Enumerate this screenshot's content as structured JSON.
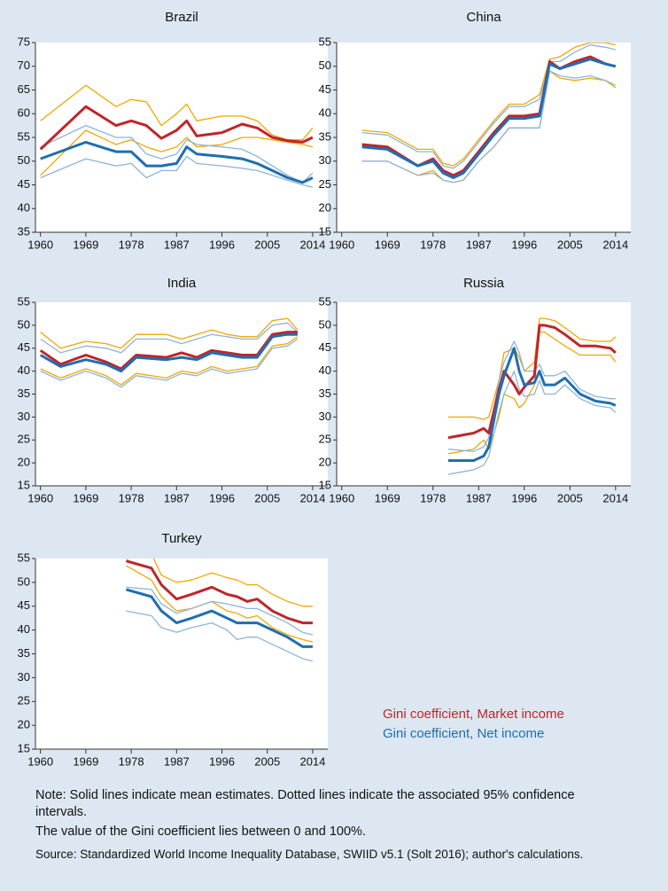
{
  "chart_data": [
    {
      "type": "line",
      "title": "Brazil",
      "x": [
        1960,
        1969,
        1975,
        1978,
        1981,
        1984,
        1987,
        1989,
        1991,
        1996,
        2000,
        2003,
        2006,
        2009,
        2012,
        2014
      ],
      "xlim": [
        1959,
        2017
      ],
      "xticks": [
        1960,
        1969,
        1978,
        1987,
        1996,
        2005,
        2014
      ],
      "ylim": [
        35,
        75
      ],
      "yticks": [
        35,
        40,
        45,
        50,
        55,
        60,
        65,
        70,
        75
      ],
      "series": [
        {
          "color": "#f0a800",
          "values": [
            58.5,
            66,
            61.5,
            63,
            62.5,
            57.5,
            60,
            62,
            58.5,
            59.5,
            59.5,
            58.5,
            55.5,
            54.5,
            54.5,
            57
          ]
        },
        {
          "color": "#f0a800",
          "values": [
            47,
            56.5,
            53.5,
            54.5,
            53,
            52,
            53,
            55,
            53,
            53.5,
            55,
            55,
            54.5,
            54,
            53.5,
            53
          ]
        },
        {
          "color": "#8db4dc",
          "values": [
            53,
            57.5,
            55,
            55,
            51.5,
            50.5,
            51.5,
            54.5,
            53.5,
            53,
            52.5,
            51,
            49,
            47,
            45.5,
            47.5
          ]
        },
        {
          "color": "#8db4dc",
          "values": [
            46.5,
            50.5,
            49,
            49.5,
            46.5,
            48,
            48,
            51,
            49.5,
            49,
            48.5,
            48,
            47,
            46,
            45,
            44.5
          ]
        },
        {
          "color": "#c0252a",
          "values": [
            52.5,
            61.5,
            57.5,
            58.5,
            57.5,
            54.8,
            56.5,
            58.5,
            55.3,
            56,
            57.8,
            57,
            55,
            54.3,
            54,
            55
          ]
        },
        {
          "color": "#1f6eb0",
          "values": [
            50.5,
            54,
            52,
            52,
            49,
            49,
            49.5,
            53,
            51.5,
            51,
            50.5,
            49.5,
            48,
            46.5,
            45.5,
            46.5
          ]
        }
      ]
    },
    {
      "type": "line",
      "title": "China",
      "x": [
        1964,
        1969,
        1975,
        1978,
        1980,
        1982,
        1984,
        1987,
        1990,
        1993,
        1996,
        1999,
        2001,
        2003,
        2006,
        2009,
        2012,
        2014
      ],
      "xlim": [
        1959,
        2017
      ],
      "xticks": [
        1960,
        1969,
        1978,
        1987,
        1996,
        2005,
        2014
      ],
      "ylim": [
        15,
        55
      ],
      "yticks": [
        15,
        20,
        25,
        30,
        35,
        40,
        45,
        50,
        55
      ],
      "series": [
        {
          "color": "#f0a800",
          "values": [
            36.5,
            36,
            32.5,
            32.5,
            29.5,
            29,
            30.5,
            34.5,
            38.5,
            42,
            42,
            44,
            51.5,
            52,
            54,
            55,
            55,
            54.5
          ]
        },
        {
          "color": "#f0a800",
          "values": [
            30,
            30,
            27,
            28,
            26,
            25.5,
            26,
            30,
            33,
            37,
            37,
            37,
            49,
            47.5,
            47,
            47.5,
            47,
            45.5
          ]
        },
        {
          "color": "#8db4dc",
          "values": [
            36,
            35.5,
            32,
            32,
            29,
            28.5,
            30,
            34,
            38,
            41.5,
            41.5,
            43,
            51,
            51,
            53,
            54.5,
            54,
            53.5
          ]
        },
        {
          "color": "#8db4dc",
          "values": [
            30,
            30,
            27,
            27.5,
            26,
            25.5,
            26,
            30,
            33,
            37,
            37,
            37,
            49,
            48,
            47.5,
            48,
            47,
            46
          ]
        },
        {
          "color": "#c0252a",
          "values": [
            33.5,
            33,
            29,
            30.5,
            28,
            27,
            28,
            32,
            36,
            39.5,
            39.5,
            40,
            51,
            49.5,
            51,
            52,
            50.5,
            50
          ]
        },
        {
          "color": "#1f6eb0",
          "values": [
            33,
            32.5,
            29,
            30,
            27.5,
            26.5,
            27.5,
            31.5,
            35.5,
            39,
            39,
            39.5,
            50.5,
            49.5,
            50.5,
            51.5,
            50.5,
            50
          ]
        }
      ]
    },
    {
      "type": "line",
      "title": "India",
      "x": [
        1960,
        1964,
        1969,
        1973,
        1976,
        1979,
        1985,
        1988,
        1991,
        1994,
        1997,
        2000,
        2003,
        2006,
        2009,
        2011
      ],
      "xlim": [
        1959,
        2017
      ],
      "xticks": [
        1960,
        1969,
        1978,
        1987,
        1996,
        2005,
        2014
      ],
      "ylim": [
        15,
        55
      ],
      "yticks": [
        15,
        20,
        25,
        30,
        35,
        40,
        45,
        50,
        55
      ],
      "series": [
        {
          "color": "#f0a800",
          "values": [
            48.5,
            45,
            46.5,
            46,
            45,
            48,
            48,
            47,
            48,
            49,
            48,
            47.5,
            47.5,
            51,
            51.5,
            49
          ]
        },
        {
          "color": "#f0a800",
          "values": [
            40.5,
            38.5,
            40.5,
            39,
            37,
            39.5,
            38.5,
            40,
            39.5,
            41,
            40,
            40.5,
            41,
            45.5,
            46,
            47.5
          ]
        },
        {
          "color": "#8db4dc",
          "values": [
            47,
            44,
            45.5,
            45,
            44,
            47,
            47,
            46,
            47,
            48,
            47.5,
            47,
            47,
            50,
            50.5,
            48.5
          ]
        },
        {
          "color": "#8db4dc",
          "values": [
            40,
            38,
            40,
            38.5,
            36.5,
            39,
            38,
            39.5,
            39,
            40.5,
            39.5,
            40,
            40.5,
            45,
            45.5,
            47
          ]
        },
        {
          "color": "#c0252a",
          "values": [
            44.5,
            41.5,
            43.5,
            42,
            40.5,
            43.5,
            43,
            44,
            43,
            44.5,
            44,
            43.5,
            43.5,
            48,
            48.5,
            48.5
          ]
        },
        {
          "color": "#1f6eb0",
          "values": [
            43.5,
            41,
            42.5,
            41.5,
            40,
            43,
            42.5,
            43,
            42.5,
            44,
            43.5,
            43,
            43,
            47.5,
            48,
            48
          ]
        }
      ]
    },
    {
      "type": "line",
      "title": "Russia",
      "x": [
        1981,
        1986,
        1988,
        1989,
        1991,
        1992,
        1994,
        1995,
        1996,
        1998,
        1999,
        2000,
        2002,
        2004,
        2007,
        2010,
        2013,
        2014
      ],
      "xlim": [
        1959,
        2017
      ],
      "xticks": [
        1960,
        1969,
        1978,
        1987,
        1996,
        2005,
        2014
      ],
      "ylim": [
        15,
        55
      ],
      "yticks": [
        15,
        20,
        25,
        30,
        35,
        40,
        45,
        50,
        55
      ],
      "series": [
        {
          "color": "#f0a800",
          "values": [
            30,
            30,
            29.5,
            30,
            38,
            44,
            45,
            43,
            40,
            42,
            51.5,
            51.5,
            51,
            49.5,
            47,
            46.5,
            46.5,
            47.5
          ]
        },
        {
          "color": "#f0a800",
          "values": [
            22,
            23,
            25,
            23,
            30,
            35,
            34,
            32,
            33,
            37,
            48.5,
            48.5,
            47,
            45.5,
            43.5,
            43.5,
            43.5,
            42
          ]
        },
        {
          "color": "#8db4dc",
          "values": [
            23,
            22.5,
            23.5,
            25.5,
            38,
            42,
            46.5,
            44,
            40,
            40,
            41.5,
            39,
            39,
            40,
            36,
            34.5,
            34,
            34
          ]
        },
        {
          "color": "#8db4dc",
          "values": [
            17.5,
            18.5,
            19.5,
            21.5,
            31,
            35,
            40,
            36,
            34.5,
            35,
            38,
            35,
            35,
            37,
            34,
            32.5,
            32,
            31
          ]
        },
        {
          "color": "#c0252a",
          "values": [
            25.5,
            26.5,
            27.5,
            26.5,
            36,
            40,
            37,
            35,
            36.5,
            39,
            50,
            50,
            49.5,
            48,
            45.5,
            45.5,
            45,
            44
          ]
        },
        {
          "color": "#1f6eb0",
          "values": [
            20.5,
            20.5,
            21.5,
            23.5,
            35,
            39,
            45,
            40,
            37,
            37.5,
            40,
            37,
            37,
            38.5,
            35,
            33.5,
            33,
            32.5
          ]
        }
      ]
    },
    {
      "type": "line",
      "title": "Turkey",
      "x": [
        1977,
        1982,
        1984,
        1987,
        1990,
        1994,
        1997,
        1999,
        2001,
        2003,
        2006,
        2009,
        2012,
        2014
      ],
      "xlim": [
        1959,
        2017
      ],
      "xticks": [
        1960,
        1969,
        1978,
        1987,
        1996,
        2005,
        2014
      ],
      "ylim": [
        15,
        55
      ],
      "yticks": [
        15,
        20,
        25,
        30,
        35,
        40,
        45,
        50,
        55
      ],
      "series": [
        {
          "color": "#f0a800",
          "values": [
            55,
            56,
            51.5,
            50,
            50.5,
            52,
            51,
            50.5,
            49.5,
            49.5,
            47.5,
            46,
            45,
            45
          ]
        },
        {
          "color": "#f0a800",
          "values": [
            53.5,
            50.5,
            47,
            44,
            44.5,
            46,
            44,
            43.5,
            42.5,
            43,
            40.5,
            39,
            38,
            37.5
          ]
        },
        {
          "color": "#8db4dc",
          "values": [
            49,
            48.5,
            45.5,
            43.5,
            44.5,
            46,
            45.5,
            45,
            44.5,
            44.5,
            43,
            41.5,
            39.5,
            39
          ]
        },
        {
          "color": "#8db4dc",
          "values": [
            44,
            43,
            40.5,
            39.5,
            40.5,
            41.5,
            40,
            38,
            38.5,
            38.5,
            37,
            35.5,
            34,
            33.5
          ]
        },
        {
          "color": "#c0252a",
          "values": [
            54.5,
            53,
            49.5,
            46.5,
            47.5,
            49,
            47.5,
            47,
            46,
            46.5,
            44,
            42.5,
            41.5,
            41.5
          ]
        },
        {
          "color": "#1f6eb0",
          "values": [
            48.5,
            47,
            44,
            41.5,
            42.5,
            44,
            42.5,
            41.5,
            41.5,
            41.5,
            40,
            38.5,
            36.5,
            36.5
          ]
        }
      ]
    }
  ],
  "legend": [
    {
      "name": "Gini coefficient, Market income",
      "color": "#c0252a"
    },
    {
      "name": "Gini coefficient, Net income",
      "color": "#1f6eb0"
    }
  ],
  "notes": [
    "Note: Solid lines indicate mean estimates. Dotted lines indicate the associated 95% confidence intervals.",
    "The value of the Gini coefficient lies between 0 and 100%.",
    "Source: Standardized World Income Inequality Database, SWIID v5.1 (Solt 2016); author's calculations."
  ]
}
